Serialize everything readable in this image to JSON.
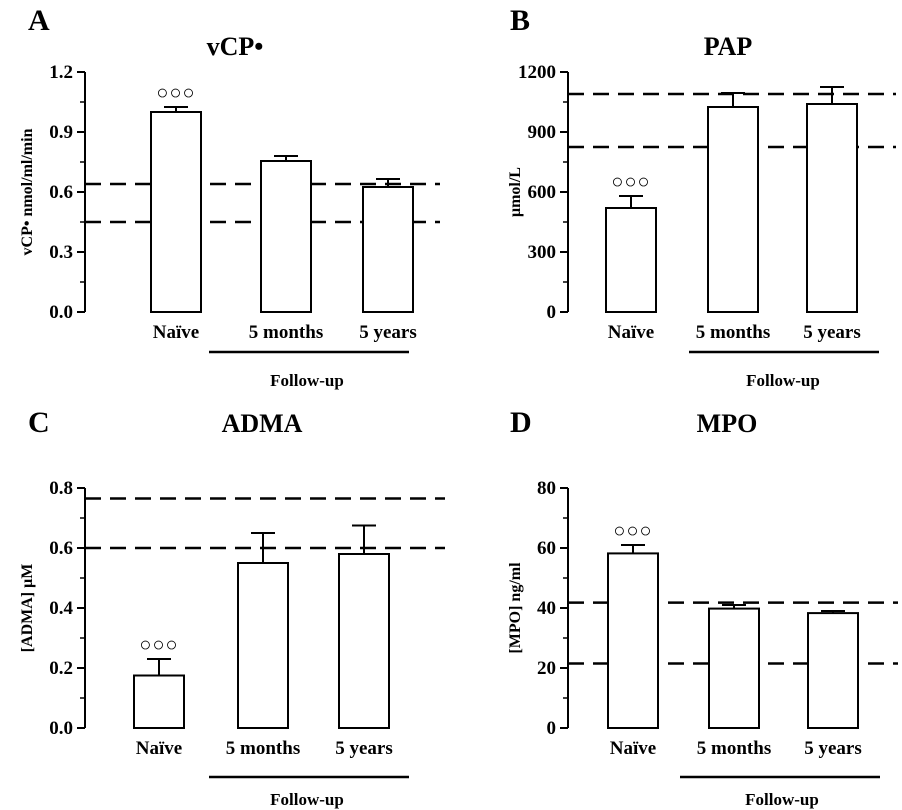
{
  "chart_data": [
    {
      "type": "bar",
      "panel": "A",
      "title": "vCP•",
      "ylabel": "vCP• nmol/ml/min",
      "categories": [
        "Naïve",
        "5 months",
        "5 years"
      ],
      "values": [
        1.0,
        0.755,
        0.625
      ],
      "errors": [
        0.025,
        0.025,
        0.04
      ],
      "significance": [
        "○○○",
        "",
        ""
      ],
      "ylim": [
        0,
        1.2
      ],
      "yticks": [
        "0.0",
        "0.3",
        "0.6",
        "0.9",
        "1.2"
      ],
      "reference_lines": [
        0.64,
        0.45
      ],
      "group_label": "Follow-up"
    },
    {
      "type": "bar",
      "panel": "B",
      "title": "PAP",
      "ylabel": "μmol/L",
      "categories": [
        "Naïve",
        "5 months",
        "5 years"
      ],
      "values": [
        520,
        1025,
        1040
      ],
      "errors": [
        60,
        70,
        85
      ],
      "significance": [
        "○○○",
        "",
        ""
      ],
      "ylim": [
        0,
        1200
      ],
      "yticks": [
        "0",
        "300",
        "600",
        "900",
        "1200"
      ],
      "reference_lines": [
        1090,
        825
      ],
      "group_label": "Follow-up"
    },
    {
      "type": "bar",
      "panel": "C",
      "title": "ADMA",
      "ylabel": "[ADMA] μM",
      "categories": [
        "Naïve",
        "5 months",
        "5 years"
      ],
      "values": [
        0.175,
        0.55,
        0.58
      ],
      "errors": [
        0.055,
        0.1,
        0.095
      ],
      "significance": [
        "○○○",
        "",
        ""
      ],
      "ylim": [
        0,
        0.8
      ],
      "yticks": [
        "0.0",
        "0.2",
        "0.4",
        "0.6",
        "0.8"
      ],
      "reference_lines": [
        0.765,
        0.6
      ],
      "group_label": "Follow-up"
    },
    {
      "type": "bar",
      "panel": "D",
      "title": "MPO",
      "ylabel": "[MPO] ng/ml",
      "categories": [
        "Naïve",
        "5 months",
        "5 years"
      ],
      "values": [
        58.2,
        39.8,
        38.3
      ],
      "errors": [
        2.8,
        1.2,
        0.7
      ],
      "significance": [
        "○○○",
        "",
        ""
      ],
      "ylim": [
        0,
        80
      ],
      "yticks": [
        "0",
        "20",
        "40",
        "60",
        "80"
      ],
      "reference_lines": [
        41.8,
        21.5
      ],
      "group_label": "Follow-up"
    }
  ]
}
